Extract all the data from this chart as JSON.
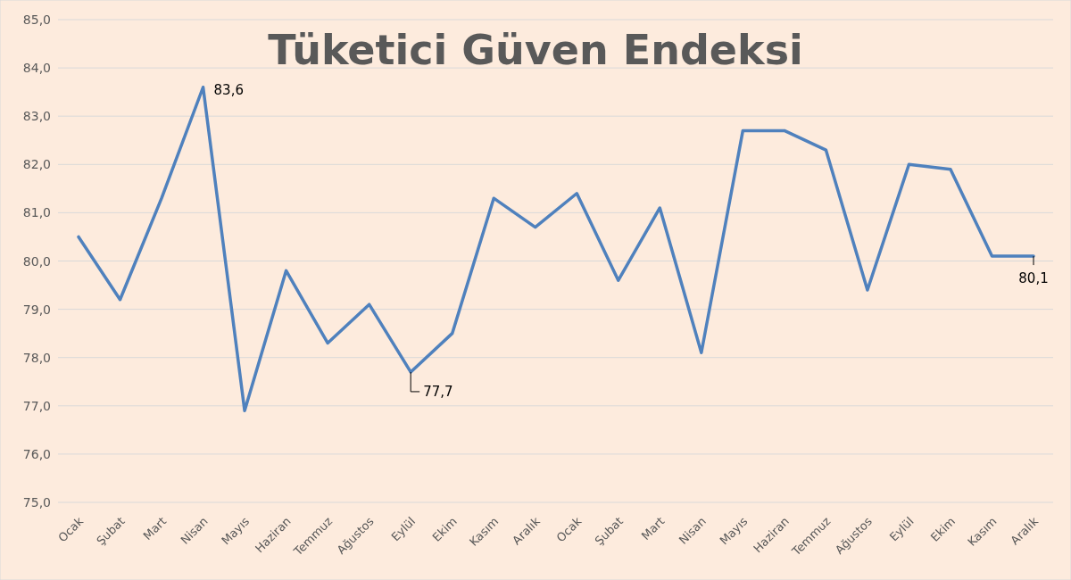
{
  "chart_data": {
    "type": "line",
    "title": "Tüketici Güven Endeksi",
    "categories": [
      "Ocak",
      "Şubat",
      "Mart",
      "Nisan",
      "Mayıs",
      "Haziran",
      "Temmuz",
      "Ağustos",
      "Eylül",
      "Ekim",
      "Kasım",
      "Aralık",
      "Ocak",
      "Şubat",
      "Mart",
      "Nisan",
      "Mayıs",
      "Haziran",
      "Temmuz",
      "Ağustos",
      "Eylül",
      "Ekim",
      "Kasım",
      "Aralık"
    ],
    "series": [
      {
        "color": "#4f81bd",
        "values": [
          80.5,
          79.2,
          81.3,
          83.6,
          76.9,
          79.8,
          78.3,
          79.1,
          77.7,
          78.5,
          81.3,
          80.7,
          81.4,
          79.6,
          81.1,
          78.1,
          82.7,
          82.7,
          82.3,
          79.4,
          82.0,
          81.9,
          80.1,
          80.1
        ],
        "value_labels": [
          null,
          null,
          null,
          "83,6",
          null,
          null,
          null,
          null,
          "77,7",
          null,
          null,
          null,
          null,
          null,
          null,
          null,
          null,
          null,
          null,
          null,
          null,
          null,
          null,
          "80,1"
        ]
      }
    ],
    "ylim": [
      75,
      85
    ],
    "yticks": [
      {
        "value": 75,
        "label": "75,0"
      },
      {
        "value": 76,
        "label": "76,0"
      },
      {
        "value": 77,
        "label": "77,0"
      },
      {
        "value": 78,
        "label": "78,0"
      },
      {
        "value": 79,
        "label": "79,0"
      },
      {
        "value": 80,
        "label": "80,0"
      },
      {
        "value": 81,
        "label": "81,0"
      },
      {
        "value": 82,
        "label": "82,0"
      },
      {
        "value": 83,
        "label": "83,0"
      },
      {
        "value": 84,
        "label": "84,0"
      },
      {
        "value": 85,
        "label": "85,0"
      }
    ],
    "grid": "y",
    "marker": "none",
    "line_style": "solid"
  }
}
